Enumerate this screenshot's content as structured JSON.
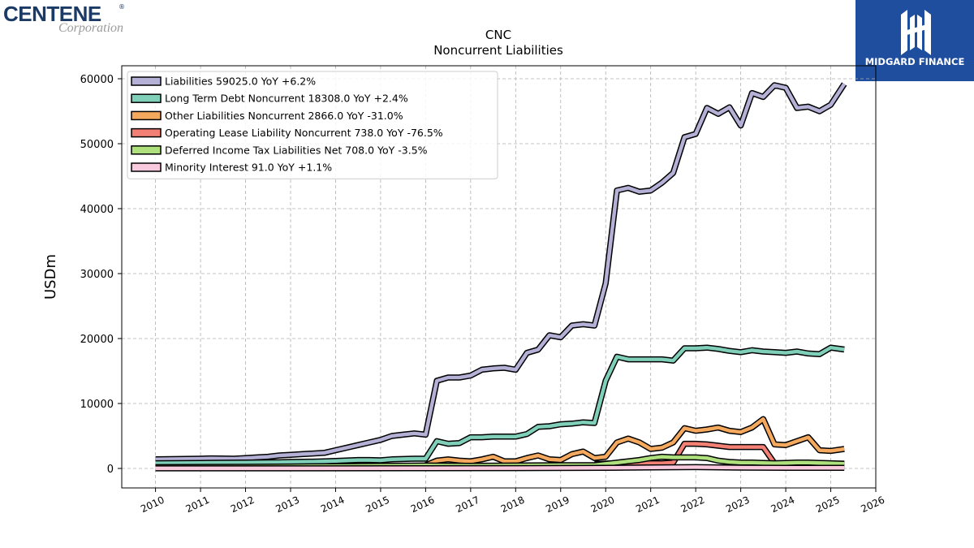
{
  "brand": {
    "company_name": "CENTENE",
    "company_suffix": "Corporation",
    "company_color": "#1b3a66",
    "publisher": "MIDGARD FINANCE",
    "publisher_bg": "#1f4e9e"
  },
  "chart_data": {
    "type": "line",
    "title": "CNC",
    "subtitle": "Noncurrent  Liabilities",
    "ylabel": "USDm",
    "xlabel": "",
    "xlim": [
      2009.25,
      2026.0
    ],
    "ylim": [
      -3000,
      62000
    ],
    "x_ticks": [
      2010,
      2011,
      2012,
      2013,
      2014,
      2015,
      2016,
      2017,
      2018,
      2019,
      2020,
      2021,
      2022,
      2023,
      2024,
      2025,
      2026
    ],
    "y_ticks": [
      0,
      10000,
      20000,
      30000,
      40000,
      50000,
      60000
    ],
    "grid": true,
    "legend_position": "upper-left",
    "series": [
      {
        "name": "Liabilities",
        "legend": "Liabilities  59025.0 YoY +6.2%",
        "color": "#b4b0d6",
        "x": [
          2010.0,
          2011.0,
          2011.25,
          2011.75,
          2012.0,
          2012.25,
          2012.5,
          2012.75,
          2013.0,
          2013.25,
          2013.5,
          2013.75,
          2014.0,
          2014.25,
          2014.5,
          2014.75,
          2015.0,
          2015.25,
          2015.5,
          2015.75,
          2016.0,
          2016.25,
          2016.5,
          2016.75,
          2017.0,
          2017.25,
          2017.5,
          2017.75,
          2018.0,
          2018.25,
          2018.5,
          2018.75,
          2019.0,
          2019.25,
          2019.5,
          2019.75,
          2020.0,
          2020.25,
          2020.5,
          2020.75,
          2021.0,
          2021.25,
          2021.5,
          2021.75,
          2022.0,
          2022.25,
          2022.5,
          2022.75,
          2023.0,
          2023.25,
          2023.5,
          2023.75,
          2024.0,
          2024.25,
          2024.5,
          2024.75,
          2025.0,
          2025.3
        ],
        "y": [
          1400,
          1500,
          1550,
          1500,
          1600,
          1700,
          1800,
          2000,
          2100,
          2200,
          2300,
          2400,
          2800,
          3200,
          3600,
          4000,
          4400,
          5000,
          5200,
          5400,
          5200,
          13500,
          14000,
          14000,
          14300,
          15200,
          15400,
          15500,
          15200,
          17800,
          18300,
          20500,
          20200,
          22000,
          22200,
          22000,
          28500,
          42800,
          43200,
          42600,
          42800,
          44000,
          45500,
          51000,
          51500,
          55500,
          54600,
          55600,
          52800,
          57800,
          57200,
          59000,
          58600,
          55500,
          55700,
          55000,
          56000,
          59200
        ]
      },
      {
        "name": "Long Term Debt Noncurrent",
        "legend": "Long Term Debt Noncurrent  18308.0 YoY +2.4%",
        "color": "#7fcfb9",
        "x": [
          2010.0,
          2011.0,
          2012.0,
          2012.75,
          2013.0,
          2013.5,
          2013.75,
          2014.0,
          2014.5,
          2014.75,
          2015.0,
          2015.25,
          2015.5,
          2015.75,
          2016.0,
          2016.25,
          2016.5,
          2016.75,
          2017.0,
          2017.25,
          2017.5,
          2017.75,
          2018.0,
          2018.25,
          2018.5,
          2018.75,
          2019.0,
          2019.25,
          2019.5,
          2019.75,
          2020.0,
          2020.25,
          2020.5,
          2020.75,
          2021.0,
          2021.25,
          2021.5,
          2021.75,
          2022.0,
          2022.25,
          2022.5,
          2022.75,
          2023.0,
          2023.25,
          2023.5,
          2023.75,
          2024.0,
          2024.25,
          2024.5,
          2024.75,
          2025.0,
          2025.3
        ],
        "y": [
          800,
          850,
          900,
          950,
          1000,
          1050,
          1100,
          1150,
          1300,
          1300,
          1250,
          1400,
          1450,
          1500,
          1500,
          4200,
          3800,
          3900,
          4800,
          4800,
          4900,
          4900,
          4900,
          5300,
          6400,
          6500,
          6800,
          6900,
          7100,
          7000,
          13500,
          17200,
          16800,
          16800,
          16800,
          16800,
          16600,
          18500,
          18500,
          18600,
          18400,
          18100,
          17900,
          18200,
          18000,
          17900,
          17800,
          18000,
          17700,
          17600,
          18600,
          18308
        ]
      },
      {
        "name": "Other Liabilities Noncurrent",
        "legend": "Other Liabilities Noncurrent  2866.0 YoY -31.0%",
        "color": "#f5a95e",
        "x": [
          2016.0,
          2016.25,
          2016.5,
          2016.75,
          2017.0,
          2017.25,
          2017.5,
          2017.75,
          2018.0,
          2018.25,
          2018.5,
          2018.75,
          2019.0,
          2019.25,
          2019.5,
          2019.75,
          2020.0,
          2020.25,
          2020.5,
          2020.75,
          2021.0,
          2021.25,
          2021.5,
          2021.75,
          2022.0,
          2022.25,
          2022.5,
          2022.75,
          2023.0,
          2023.25,
          2023.5,
          2023.75,
          2024.0,
          2024.25,
          2024.5,
          2024.75,
          2025.0,
          2025.3
        ],
        "y": [
          500,
          1200,
          1400,
          1200,
          1100,
          1400,
          1800,
          1100,
          1100,
          1600,
          2000,
          1400,
          1300,
          2200,
          2600,
          1600,
          1800,
          4000,
          4600,
          4000,
          3000,
          3200,
          4000,
          6200,
          5800,
          6000,
          6300,
          5800,
          5600,
          6300,
          7600,
          3700,
          3600,
          4200,
          4800,
          2800,
          2700,
          3000
        ]
      },
      {
        "name": "Operating Lease Liability Noncurrent",
        "legend": "Operating Lease Liability Noncurrent  738.0 YoY -76.5%",
        "color": "#f28074",
        "x": [
          2019.75,
          2020.0,
          2020.25,
          2020.5,
          2020.75,
          2021.0,
          2021.25,
          2021.5,
          2021.75,
          2022.0,
          2022.25,
          2022.5,
          2022.75,
          2023.0,
          2023.25,
          2023.5,
          2023.75,
          2024.0,
          2024.25,
          2024.5,
          2024.75,
          2025.0,
          2025.3
        ],
        "y": [
          700,
          750,
          800,
          800,
          800,
          800,
          800,
          900,
          3800,
          3800,
          3700,
          3500,
          3300,
          3300,
          3300,
          3300,
          800,
          800,
          750,
          750,
          750,
          740,
          738
        ]
      },
      {
        "name": "Deferred Income Tax Liabilities Net",
        "legend": "Deferred Income Tax Liabilities Net  708.0 YoY -3.5%",
        "color": "#aee07e",
        "x": [
          2010.0,
          2012.0,
          2013.0,
          2014.0,
          2015.0,
          2016.0,
          2017.0,
          2018.0,
          2019.0,
          2019.75,
          2020.0,
          2020.25,
          2020.5,
          2020.75,
          2021.0,
          2021.25,
          2021.5,
          2021.75,
          2022.0,
          2022.25,
          2022.5,
          2022.75,
          2023.0,
          2023.25,
          2023.5,
          2023.75,
          2024.0,
          2024.25,
          2024.5,
          2024.75,
          2025.0,
          2025.3
        ],
        "y": [
          200,
          250,
          300,
          350,
          400,
          450,
          400,
          450,
          500,
          500,
          700,
          900,
          1100,
          1300,
          1600,
          1800,
          1700,
          1700,
          1700,
          1600,
          1200,
          1000,
          900,
          900,
          850,
          800,
          850,
          900,
          900,
          850,
          800,
          708
        ]
      },
      {
        "name": "Minority Interest",
        "legend": "Minority Interest  91.0 YoY +1.1%",
        "color": "#f9c9de",
        "x": [
          2010.0,
          2013.0,
          2016.0,
          2018.0,
          2020.0,
          2021.0,
          2022.0,
          2023.0,
          2024.0,
          2025.0,
          2025.3
        ],
        "y": [
          10,
          15,
          20,
          50,
          100,
          150,
          200,
          120,
          90,
          90,
          91
        ]
      }
    ]
  }
}
